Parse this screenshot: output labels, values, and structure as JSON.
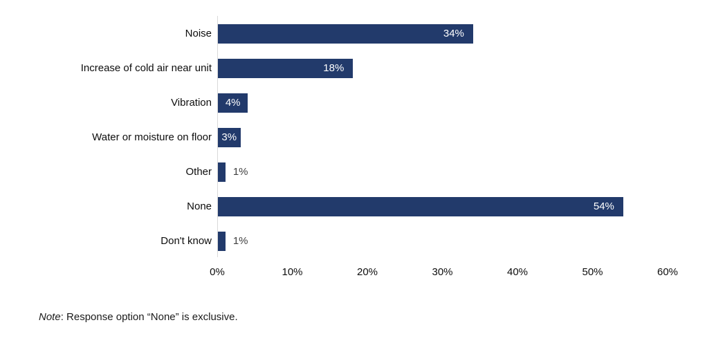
{
  "chart_data": {
    "type": "bar",
    "orientation": "horizontal",
    "title": "",
    "xlabel": "",
    "ylabel": "",
    "categories": [
      "Noise",
      "Increase of cold air near unit",
      "Vibration",
      "Water or moisture on floor",
      "Other",
      "None",
      "Don't know"
    ],
    "values": [
      34,
      18,
      4,
      3,
      1,
      54,
      1
    ],
    "value_labels": [
      "34%",
      "18%",
      "4%",
      "3%",
      "1%",
      "54%",
      "1%"
    ],
    "x_ticks": [
      "0%",
      "10%",
      "20%",
      "30%",
      "40%",
      "50%",
      "60%"
    ],
    "xlim": [
      0,
      60
    ],
    "grid": false,
    "legend": "none",
    "bar_color": "#223a6b"
  },
  "colors": {
    "bar": "#223a6b",
    "axis_line": "#d9d9d9",
    "value_label_inside": "#ffffff",
    "value_label_outside": "#404040",
    "text": "#0d0d0d"
  },
  "note": {
    "prefix": "Note",
    "text": ": Response option “None” is exclusive."
  }
}
